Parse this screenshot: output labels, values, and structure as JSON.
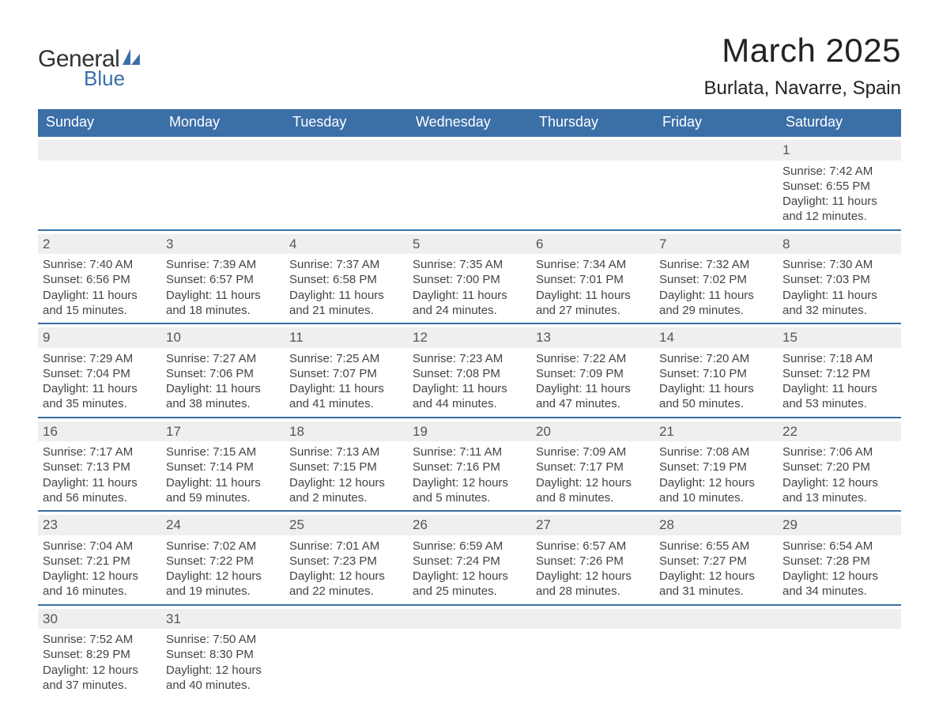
{
  "logo": {
    "text_general": "General",
    "text_blue": "Blue",
    "sail_color": "#3b6fa8",
    "text_color_dark": "#333333"
  },
  "header": {
    "month_title": "March 2025",
    "location": "Burlata, Navarre, Spain"
  },
  "styling": {
    "header_bg": "#3b6fa8",
    "header_text": "#ffffff",
    "row_border": "#3b6fa8",
    "daynum_bg": "#efefef",
    "body_text": "#444444",
    "page_bg": "#ffffff",
    "title_fontsize": 42,
    "location_fontsize": 24,
    "dow_fontsize": 18,
    "cell_fontsize": 15,
    "columns": 7
  },
  "days_of_week": [
    "Sunday",
    "Monday",
    "Tuesday",
    "Wednesday",
    "Thursday",
    "Friday",
    "Saturday"
  ],
  "leading_blanks": 6,
  "days": [
    {
      "n": "1",
      "sunrise": "Sunrise: 7:42 AM",
      "sunset": "Sunset: 6:55 PM",
      "daylight": "Daylight: 11 hours and 12 minutes."
    },
    {
      "n": "2",
      "sunrise": "Sunrise: 7:40 AM",
      "sunset": "Sunset: 6:56 PM",
      "daylight": "Daylight: 11 hours and 15 minutes."
    },
    {
      "n": "3",
      "sunrise": "Sunrise: 7:39 AM",
      "sunset": "Sunset: 6:57 PM",
      "daylight": "Daylight: 11 hours and 18 minutes."
    },
    {
      "n": "4",
      "sunrise": "Sunrise: 7:37 AM",
      "sunset": "Sunset: 6:58 PM",
      "daylight": "Daylight: 11 hours and 21 minutes."
    },
    {
      "n": "5",
      "sunrise": "Sunrise: 7:35 AM",
      "sunset": "Sunset: 7:00 PM",
      "daylight": "Daylight: 11 hours and 24 minutes."
    },
    {
      "n": "6",
      "sunrise": "Sunrise: 7:34 AM",
      "sunset": "Sunset: 7:01 PM",
      "daylight": "Daylight: 11 hours and 27 minutes."
    },
    {
      "n": "7",
      "sunrise": "Sunrise: 7:32 AM",
      "sunset": "Sunset: 7:02 PM",
      "daylight": "Daylight: 11 hours and 29 minutes."
    },
    {
      "n": "8",
      "sunrise": "Sunrise: 7:30 AM",
      "sunset": "Sunset: 7:03 PM",
      "daylight": "Daylight: 11 hours and 32 minutes."
    },
    {
      "n": "9",
      "sunrise": "Sunrise: 7:29 AM",
      "sunset": "Sunset: 7:04 PM",
      "daylight": "Daylight: 11 hours and 35 minutes."
    },
    {
      "n": "10",
      "sunrise": "Sunrise: 7:27 AM",
      "sunset": "Sunset: 7:06 PM",
      "daylight": "Daylight: 11 hours and 38 minutes."
    },
    {
      "n": "11",
      "sunrise": "Sunrise: 7:25 AM",
      "sunset": "Sunset: 7:07 PM",
      "daylight": "Daylight: 11 hours and 41 minutes."
    },
    {
      "n": "12",
      "sunrise": "Sunrise: 7:23 AM",
      "sunset": "Sunset: 7:08 PM",
      "daylight": "Daylight: 11 hours and 44 minutes."
    },
    {
      "n": "13",
      "sunrise": "Sunrise: 7:22 AM",
      "sunset": "Sunset: 7:09 PM",
      "daylight": "Daylight: 11 hours and 47 minutes."
    },
    {
      "n": "14",
      "sunrise": "Sunrise: 7:20 AM",
      "sunset": "Sunset: 7:10 PM",
      "daylight": "Daylight: 11 hours and 50 minutes."
    },
    {
      "n": "15",
      "sunrise": "Sunrise: 7:18 AM",
      "sunset": "Sunset: 7:12 PM",
      "daylight": "Daylight: 11 hours and 53 minutes."
    },
    {
      "n": "16",
      "sunrise": "Sunrise: 7:17 AM",
      "sunset": "Sunset: 7:13 PM",
      "daylight": "Daylight: 11 hours and 56 minutes."
    },
    {
      "n": "17",
      "sunrise": "Sunrise: 7:15 AM",
      "sunset": "Sunset: 7:14 PM",
      "daylight": "Daylight: 11 hours and 59 minutes."
    },
    {
      "n": "18",
      "sunrise": "Sunrise: 7:13 AM",
      "sunset": "Sunset: 7:15 PM",
      "daylight": "Daylight: 12 hours and 2 minutes."
    },
    {
      "n": "19",
      "sunrise": "Sunrise: 7:11 AM",
      "sunset": "Sunset: 7:16 PM",
      "daylight": "Daylight: 12 hours and 5 minutes."
    },
    {
      "n": "20",
      "sunrise": "Sunrise: 7:09 AM",
      "sunset": "Sunset: 7:17 PM",
      "daylight": "Daylight: 12 hours and 8 minutes."
    },
    {
      "n": "21",
      "sunrise": "Sunrise: 7:08 AM",
      "sunset": "Sunset: 7:19 PM",
      "daylight": "Daylight: 12 hours and 10 minutes."
    },
    {
      "n": "22",
      "sunrise": "Sunrise: 7:06 AM",
      "sunset": "Sunset: 7:20 PM",
      "daylight": "Daylight: 12 hours and 13 minutes."
    },
    {
      "n": "23",
      "sunrise": "Sunrise: 7:04 AM",
      "sunset": "Sunset: 7:21 PM",
      "daylight": "Daylight: 12 hours and 16 minutes."
    },
    {
      "n": "24",
      "sunrise": "Sunrise: 7:02 AM",
      "sunset": "Sunset: 7:22 PM",
      "daylight": "Daylight: 12 hours and 19 minutes."
    },
    {
      "n": "25",
      "sunrise": "Sunrise: 7:01 AM",
      "sunset": "Sunset: 7:23 PM",
      "daylight": "Daylight: 12 hours and 22 minutes."
    },
    {
      "n": "26",
      "sunrise": "Sunrise: 6:59 AM",
      "sunset": "Sunset: 7:24 PM",
      "daylight": "Daylight: 12 hours and 25 minutes."
    },
    {
      "n": "27",
      "sunrise": "Sunrise: 6:57 AM",
      "sunset": "Sunset: 7:26 PM",
      "daylight": "Daylight: 12 hours and 28 minutes."
    },
    {
      "n": "28",
      "sunrise": "Sunrise: 6:55 AM",
      "sunset": "Sunset: 7:27 PM",
      "daylight": "Daylight: 12 hours and 31 minutes."
    },
    {
      "n": "29",
      "sunrise": "Sunrise: 6:54 AM",
      "sunset": "Sunset: 7:28 PM",
      "daylight": "Daylight: 12 hours and 34 minutes."
    },
    {
      "n": "30",
      "sunrise": "Sunrise: 7:52 AM",
      "sunset": "Sunset: 8:29 PM",
      "daylight": "Daylight: 12 hours and 37 minutes."
    },
    {
      "n": "31",
      "sunrise": "Sunrise: 7:50 AM",
      "sunset": "Sunset: 8:30 PM",
      "daylight": "Daylight: 12 hours and 40 minutes."
    }
  ]
}
